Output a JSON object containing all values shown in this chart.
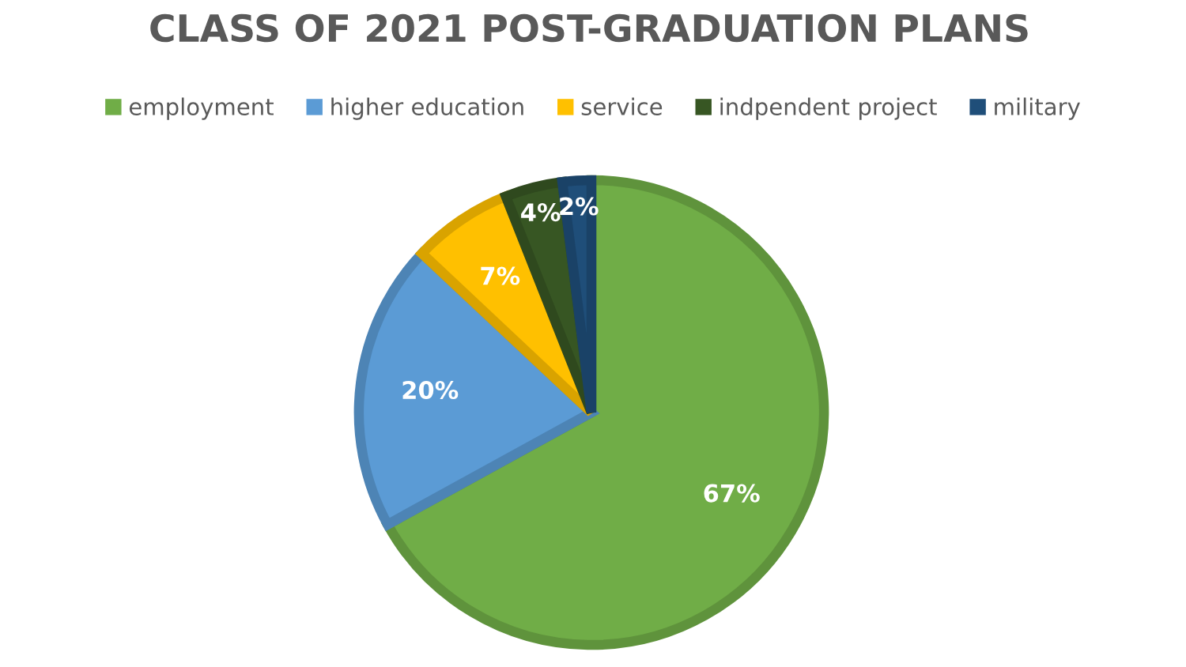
{
  "chart_data": {
    "type": "pie",
    "title": "CLASS OF 2021 POST-GRADUATION PLANS",
    "categories": [
      "employment",
      "higher education",
      "service",
      "indpendent project",
      "military"
    ],
    "values": [
      67,
      20,
      7,
      4,
      2
    ],
    "colors": [
      "#70ad47",
      "#5b9bd5",
      "#ffc000",
      "#375623",
      "#1f4e79"
    ],
    "value_labels": [
      "67%",
      "20%",
      "7%",
      "4%",
      "2%"
    ],
    "legend": "top"
  }
}
